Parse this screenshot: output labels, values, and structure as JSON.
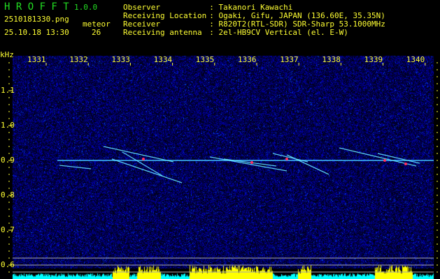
{
  "header": {
    "app_name": "H R O F F T",
    "version": "1.0.0",
    "filename": "2510181330.png",
    "datetime": "25.10.18 13:30",
    "meteor_label": "meteor",
    "meteor_count": "26",
    "info": [
      {
        "label": "Observer",
        "value": ": Takanori Kawachi"
      },
      {
        "label": "Receiving Location",
        "value": ": Ogaki, Gifu, JAPAN (136.60E, 35.35N)"
      },
      {
        "label": "Receiver",
        "value": ": R820T2(RTL-SDR) SDR-Sharp 53.1000MHz"
      },
      {
        "label": "Receiving antenna",
        "value": ": 2el-HB9CV Vertical (el. E-W)"
      }
    ]
  },
  "colors": {
    "text": "#ffff33",
    "title": "#22dd22",
    "background_noise": "#0a0a7a",
    "carrier": "#40c0ff",
    "bars_low": "#00ffff",
    "bars_high": "#ffff00"
  },
  "chart_data": {
    "type": "heatmap",
    "ylabel": "kHz",
    "x_ticks": [
      "1331",
      "1332",
      "1333",
      "1334",
      "1335",
      "1336",
      "1337",
      "1338",
      "1339",
      "1340"
    ],
    "y_ticks": [
      "1.1",
      "1.0",
      "0.9",
      "0.8",
      "0.7",
      "0.6"
    ],
    "ylim": [
      0.58,
      1.2
    ],
    "xlim": [
      1330.25,
      1340.1
    ],
    "carrier_khz": 0.9,
    "grid": false
  }
}
